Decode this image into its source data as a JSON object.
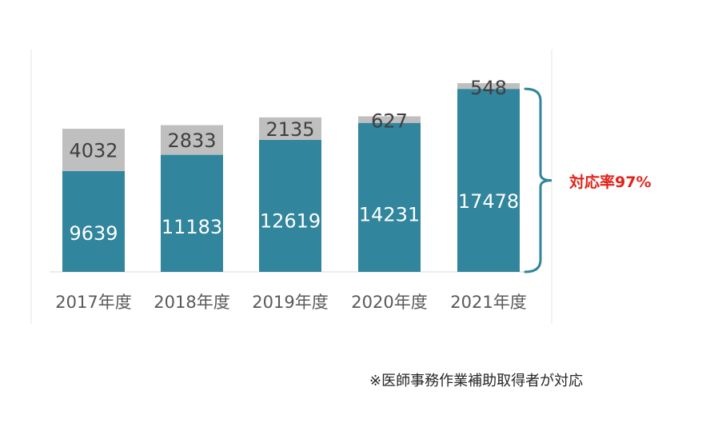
{
  "chart_data": {
    "type": "bar",
    "stacked": true,
    "categories": [
      "2017年度",
      "2018年度",
      "2019年度",
      "2020年度",
      "2021年度"
    ],
    "series": [
      {
        "values": [
          9639,
          11183,
          12619,
          14231,
          17478
        ],
        "color": "#31859c"
      },
      {
        "values": [
          4032,
          2833,
          2135,
          627,
          548
        ],
        "color": "#bfbfbf"
      }
    ],
    "bar_label_colors": {
      "bottom": "#ffffff",
      "top": "#404040"
    },
    "ylim": [
      0,
      20000
    ],
    "grid": false,
    "brace_color": "#31859c",
    "annotation": "対応率97%"
  },
  "footnote": "※医師事務作業補助取得者が対応"
}
